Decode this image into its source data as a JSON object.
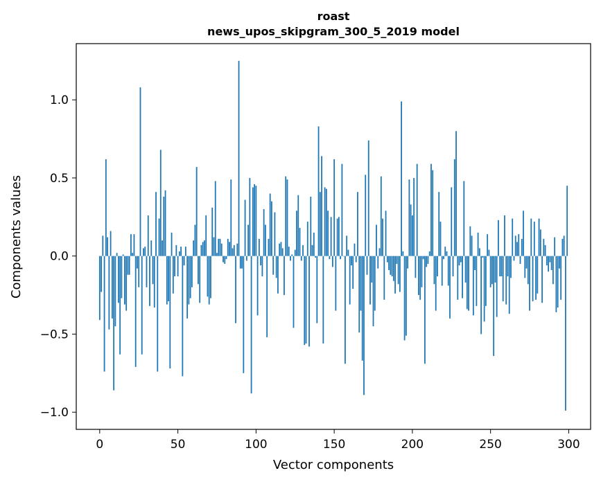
{
  "chart_data": {
    "type": "bar",
    "title": "roast",
    "subtitle": "news_upos_skipgram_300_5_2019 model",
    "xlabel": "Vector components",
    "ylabel": "Components values",
    "xlim": [
      -15,
      314
    ],
    "ylim": [
      -1.11,
      1.36
    ],
    "x_ticks": [
      0,
      50,
      100,
      150,
      200,
      250,
      300
    ],
    "x_tick_labels": [
      "0",
      "50",
      "100",
      "150",
      "200",
      "250",
      "300"
    ],
    "y_ticks": [
      -1.0,
      -0.5,
      0.0,
      0.5,
      1.0
    ],
    "y_tick_labels": [
      "−1.0",
      "−0.5",
      "0.0",
      "0.5",
      "1.0"
    ],
    "grid": false,
    "bar_color": "#1f77b4",
    "series": [
      {
        "values": [
          -0.41,
          -0.23,
          0.13,
          -0.74,
          0.62,
          0.12,
          -0.47,
          0.16,
          -0.4,
          -0.86,
          -0.45,
          0.02,
          -0.3,
          -0.63,
          -0.27,
          0.01,
          -0.31,
          -0.35,
          -0.12,
          -0.12,
          0.14,
          0.02,
          0.14,
          -0.71,
          -0.08,
          -0.2,
          1.08,
          -0.63,
          0.05,
          0.06,
          -0.2,
          0.26,
          -0.32,
          0.1,
          -0.18,
          -0.33,
          0.41,
          -0.74,
          0.24,
          0.68,
          0.1,
          0.38,
          0.42,
          -0.31,
          -0.29,
          -0.72,
          0.15,
          -0.24,
          -0.13,
          0.07,
          -0.13,
          0.03,
          0.06,
          -0.77,
          -0.06,
          0.06,
          -0.4,
          -0.31,
          -0.27,
          -0.2,
          0.1,
          0.2,
          0.57,
          -0.18,
          -0.3,
          0.07,
          0.09,
          0.1,
          0.26,
          -0.26,
          -0.31,
          -0.27,
          0.31,
          0.12,
          0.48,
          0.02,
          0.11,
          0.11,
          0.08,
          -0.04,
          -0.05,
          -0.02,
          0.11,
          0.09,
          0.49,
          0.05,
          0.07,
          -0.43,
          0.08,
          1.25,
          -0.08,
          -0.08,
          -0.75,
          0.36,
          -0.03,
          0.2,
          0.5,
          -0.88,
          0.44,
          0.46,
          0.45,
          -0.38,
          0.11,
          -0.06,
          -0.13,
          0.3,
          0.2,
          -0.52,
          0.11,
          0.4,
          0.35,
          -0.12,
          0.28,
          -0.14,
          -0.24,
          0.08,
          0.09,
          0.05,
          -0.25,
          0.51,
          0.49,
          0.06,
          -0.03,
          0.01,
          -0.46,
          0.04,
          0.29,
          0.39,
          0.18,
          -0.03,
          0.07,
          -0.57,
          -0.56,
          0.22,
          -0.58,
          0.38,
          0.07,
          0.15,
          -0.01,
          -0.43,
          0.83,
          0.41,
          0.64,
          -0.56,
          0.44,
          0.43,
          0.29,
          -0.02,
          0.25,
          -0.07,
          0.62,
          -0.35,
          0.24,
          0.25,
          -0.02,
          0.59,
          0.0,
          -0.69,
          0.13,
          0.04,
          -0.31,
          -0.06,
          -0.21,
          0.08,
          -0.04,
          0.41,
          -0.49,
          -0.35,
          -0.67,
          -0.89,
          0.52,
          -0.12,
          0.74,
          -0.31,
          -0.17,
          -0.45,
          -0.35,
          0.2,
          -0.08,
          0.05,
          0.51,
          0.24,
          -0.28,
          0.29,
          -0.04,
          -0.09,
          -0.12,
          -0.13,
          -0.16,
          -0.24,
          -0.05,
          -0.18,
          -0.23,
          0.99,
          0.03,
          -0.54,
          -0.51,
          -0.08,
          0.49,
          0.33,
          0.26,
          0.5,
          -0.14,
          0.59,
          -0.25,
          -0.28,
          -0.2,
          -0.02,
          -0.69,
          -0.07,
          -0.05,
          0.03,
          0.59,
          0.55,
          -0.18,
          -0.35,
          -0.13,
          0.41,
          0.22,
          -0.19,
          -0.02,
          0.06,
          0.03,
          -0.19,
          -0.4,
          0.44,
          -0.13,
          0.62,
          0.8,
          -0.28,
          -0.06,
          -0.04,
          -0.27,
          0.48,
          -0.17,
          -0.34,
          -0.35,
          0.19,
          0.13,
          -0.38,
          -0.09,
          -0.32,
          0.15,
          0.05,
          -0.5,
          -0.01,
          -0.42,
          -0.32,
          0.14,
          0.04,
          -0.2,
          -0.18,
          -0.64,
          -0.17,
          -0.39,
          0.23,
          -0.13,
          -0.13,
          -0.29,
          0.26,
          -0.31,
          -0.13,
          -0.37,
          -0.14,
          0.24,
          -0.03,
          0.13,
          0.09,
          0.14,
          -0.05,
          0.11,
          0.29,
          -0.14,
          -0.08,
          -0.18,
          -0.35,
          0.24,
          -0.29,
          0.22,
          -0.28,
          -0.24,
          0.24,
          0.17,
          -0.3,
          0.11,
          0.07,
          -0.06,
          -0.1,
          -0.04,
          -0.09,
          -0.18,
          0.12,
          -0.36,
          -0.33,
          -0.08,
          -0.28,
          0.11,
          0.13,
          -0.99,
          0.45
        ]
      }
    ]
  }
}
